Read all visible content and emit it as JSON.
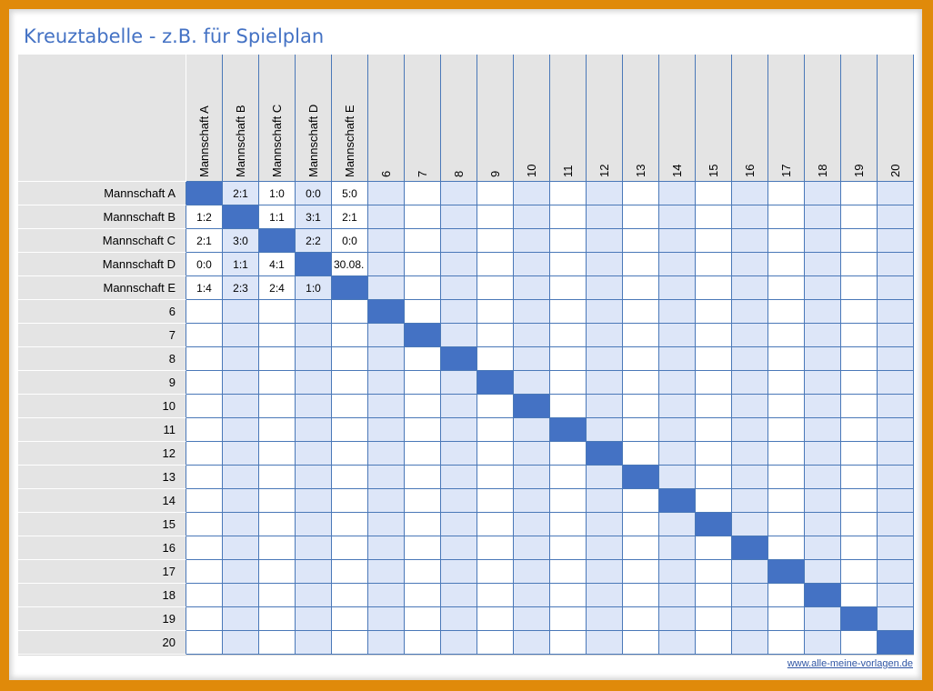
{
  "title": "Kreuztabelle - z.B. für Spielplan",
  "columns": [
    "Mannschaft A",
    "Mannschaft B",
    "Mannschaft C",
    "Mannschaft D",
    "Mannschaft E",
    "6",
    "7",
    "8",
    "9",
    "10",
    "11",
    "12",
    "13",
    "14",
    "15",
    "16",
    "17",
    "18",
    "19",
    "20"
  ],
  "rows": [
    "Mannschaft A",
    "Mannschaft B",
    "Mannschaft C",
    "Mannschaft D",
    "Mannschaft E",
    "6",
    "7",
    "8",
    "9",
    "10",
    "11",
    "12",
    "13",
    "14",
    "15",
    "16",
    "17",
    "18",
    "19",
    "20"
  ],
  "results": [
    [
      "",
      "2:1",
      "1:0",
      "0:0",
      "5:0"
    ],
    [
      "1:2",
      "",
      "1:1",
      "3:1",
      "2:1"
    ],
    [
      "2:1",
      "3:0",
      "",
      "2:2",
      "0:0"
    ],
    [
      "0:0",
      "1:1",
      "4:1",
      "",
      "30.08."
    ],
    [
      "1:4",
      "2:3",
      "2:4",
      "1:0",
      ""
    ]
  ],
  "footer_link": "www.alle-meine-vorlagen.de",
  "colors": {
    "accent": "#4472c4",
    "shade": "#dde6f8",
    "header_bg": "#e4e4e4",
    "frame": "#e08a0a"
  }
}
